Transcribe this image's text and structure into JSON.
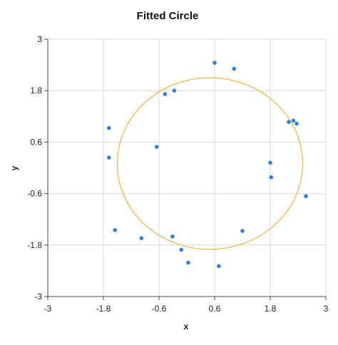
{
  "chart_data": {
    "type": "scatter",
    "title": "Fitted Circle",
    "xlabel": "x",
    "ylabel": "y",
    "xlim": [
      -3,
      3
    ],
    "ylim": [
      -3,
      3
    ],
    "grid": true,
    "x_ticks": [
      -3,
      -1.8,
      -0.6,
      0.6,
      1.8,
      3
    ],
    "y_ticks": [
      -3,
      -1.8,
      -0.6,
      0.6,
      1.8,
      3
    ],
    "x_tick_labels": [
      "-3",
      "-1.8",
      "-0.6",
      "0.6",
      "1.8",
      "3"
    ],
    "y_tick_labels": [
      "-3",
      "-1.8",
      "-0.6",
      "0.6",
      "1.8",
      "3"
    ],
    "points": {
      "color": "#2f7fe0",
      "x": [
        0.6,
        1.02,
        2.37,
        2.57,
        2.2,
        2.3,
        1.8,
        1.82,
        1.2,
        0.69,
        0.03,
        -0.12,
        -0.31,
        -0.98,
        -0.65,
        -1.68,
        -1.68,
        -1.55,
        -0.27,
        -0.47
      ],
      "y": [
        2.45,
        2.31,
        1.03,
        -0.66,
        1.07,
        1.1,
        0.12,
        -0.22,
        -1.47,
        -2.29,
        -2.21,
        -1.91,
        -1.6,
        -1.64,
        0.49,
        0.24,
        0.93,
        -1.45,
        1.8,
        1.72
      ]
    },
    "circle": {
      "color": "#f5b041",
      "center": [
        0.5,
        0.1
      ],
      "radius": 2.0
    }
  }
}
